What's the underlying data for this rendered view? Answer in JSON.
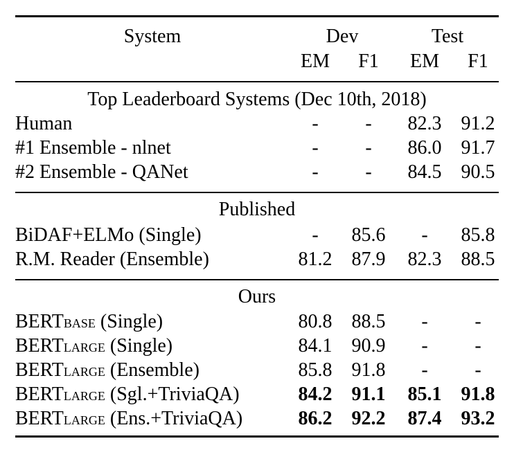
{
  "header": {
    "system": "System",
    "dev": "Dev",
    "test": "Test",
    "em": "EM",
    "f1": "F1"
  },
  "sections": [
    {
      "title": "Top Leaderboard Systems (Dec 10th, 2018)",
      "rows": [
        {
          "name": "Human",
          "sub": "",
          "suffix": "",
          "dev_em": "-",
          "dev_f1": "-",
          "test_em": "82.3",
          "test_f1": "91.2"
        },
        {
          "name": "#1 Ensemble - nlnet",
          "sub": "",
          "suffix": "",
          "dev_em": "-",
          "dev_f1": "-",
          "test_em": "86.0",
          "test_f1": "91.7"
        },
        {
          "name": "#2 Ensemble - QANet",
          "sub": "",
          "suffix": "",
          "dev_em": "-",
          "dev_f1": "-",
          "test_em": "84.5",
          "test_f1": "90.5"
        }
      ]
    },
    {
      "title": "Published",
      "rows": [
        {
          "name": "BiDAF+ELMo (Single)",
          "sub": "",
          "suffix": "",
          "dev_em": "-",
          "dev_f1": "85.6",
          "test_em": "-",
          "test_f1": "85.8"
        },
        {
          "name": "R.M. Reader (Ensemble)",
          "sub": "",
          "suffix": "",
          "dev_em": "81.2",
          "dev_f1": "87.9",
          "test_em": "82.3",
          "test_f1": "88.5"
        }
      ]
    },
    {
      "title": "Ours",
      "rows": [
        {
          "name": "BERT",
          "sub": "BASE",
          "suffix": " (Single)",
          "dev_em": "80.8",
          "dev_f1": "88.5",
          "test_em": "-",
          "test_f1": "-"
        },
        {
          "name": "BERT",
          "sub": "LARGE",
          "suffix": " (Single)",
          "dev_em": "84.1",
          "dev_f1": "90.9",
          "test_em": "-",
          "test_f1": "-"
        },
        {
          "name": "BERT",
          "sub": "LARGE",
          "suffix": " (Ensemble)",
          "dev_em": "85.8",
          "dev_f1": "91.8",
          "test_em": "-",
          "test_f1": "-"
        },
        {
          "name": "BERT",
          "sub": "LARGE",
          "suffix": " (Sgl.+TriviaQA)",
          "dev_em": "84.2",
          "dev_f1": "91.1",
          "test_em": "85.1",
          "test_f1": "91.8"
        },
        {
          "name": "BERT",
          "sub": "LARGE",
          "suffix": " (Ens.+TriviaQA)",
          "dev_em": "86.2",
          "dev_f1": "92.2",
          "test_em": "87.4",
          "test_f1": "93.2"
        }
      ]
    }
  ]
}
